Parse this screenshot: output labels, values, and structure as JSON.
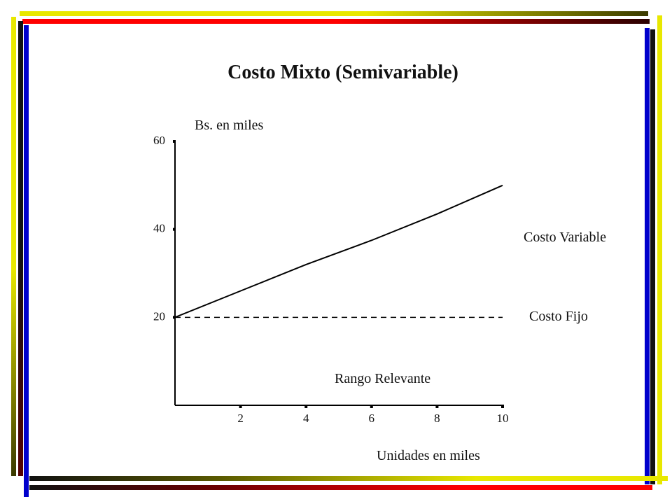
{
  "colors": {
    "yellow": "#e8e800",
    "red": "#ff0000",
    "blue": "#0000cc",
    "dark": "#111111"
  },
  "chart_data": {
    "type": "line",
    "title": "Costo Mixto (Semivariable)",
    "ylabel": "Bs. en miles",
    "xlabel": "Unidades en miles",
    "xlim": [
      0,
      10
    ],
    "ylim": [
      0,
      60
    ],
    "x_ticks": [
      2,
      4,
      6,
      8,
      10
    ],
    "y_ticks": [
      20,
      40,
      60
    ],
    "series": [
      {
        "name": "Costo Variable",
        "style": "solid",
        "x": [
          0,
          2,
          4,
          6,
          8,
          10
        ],
        "y": [
          20,
          26,
          32,
          37.5,
          43.5,
          50
        ]
      },
      {
        "name": "Costo Fijo",
        "style": "dashed",
        "x": [
          0,
          10
        ],
        "y": [
          20,
          20
        ]
      }
    ],
    "annotations": [
      "Rango Relevante"
    ],
    "grid": false
  }
}
